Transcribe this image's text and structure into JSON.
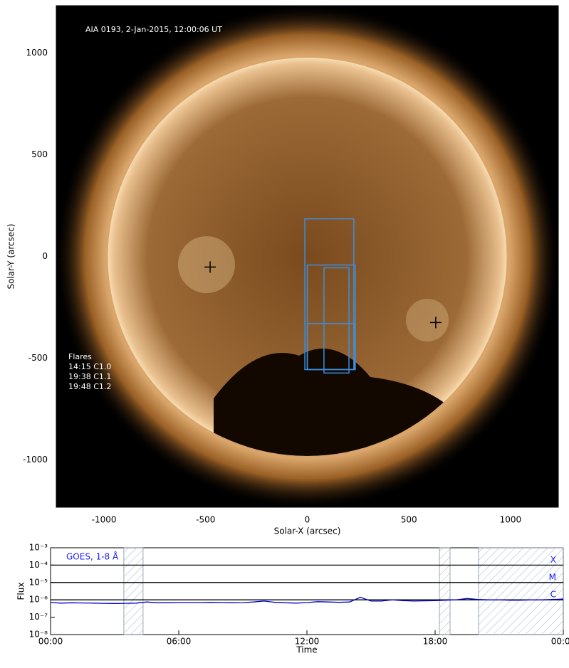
{
  "chart_data": [
    {
      "type": "image",
      "title": "AIA 0193, 2-Jan-2015, 12:00:06 UT",
      "xlabel": "Solar-X (arcsec)",
      "ylabel": "Solar-Y (arcsec)",
      "xlim": [
        -1235,
        1235
      ],
      "ylim": [
        -1233,
        1233
      ],
      "xticks": [
        -1000,
        -500,
        0,
        500,
        1000
      ],
      "yticks": [
        -1000,
        -500,
        0,
        500,
        1000
      ],
      "flares_title": "Flares",
      "flares": [
        "14:15 C1.0",
        "19:38 C1.1",
        "19:48 C1.2"
      ],
      "markers": {
        "x": [
          -478,
          632
        ],
        "y": [
          -52,
          -325
        ]
      },
      "boxes": {
        "color": "#3a8fe0",
        "x0": [
          -12,
          0,
          82,
          0
        ],
        "x1": [
          229,
          236,
          205,
          233
        ],
        "y0": [
          -556,
          -556,
          -573,
          -556
        ],
        "y1": [
          185,
          -42,
          -56,
          -330
        ]
      }
    },
    {
      "type": "line",
      "title": "GOES, 1-8 Å",
      "xlabel": "Time",
      "ylabel": "Flux",
      "log_scale": true,
      "xlim": [
        0,
        24
      ],
      "ylim": [
        1e-08,
        0.001
      ],
      "xticks": [
        {
          "value": 0,
          "label": "00:00"
        },
        {
          "value": 6,
          "label": "06:00"
        },
        {
          "value": 12,
          "label": "12:00"
        },
        {
          "value": 18,
          "label": "18:00"
        },
        {
          "value": 24,
          "label": "00:00"
        }
      ],
      "yticks": [
        {
          "value": 1e-08,
          "label": "10⁻⁸"
        },
        {
          "value": 1e-07,
          "label": "10⁻⁷"
        },
        {
          "value": 1e-06,
          "label": "10⁻⁶"
        },
        {
          "value": 1e-05,
          "label": "10⁻⁵"
        },
        {
          "value": 0.0001,
          "label": "10⁻⁴"
        },
        {
          "value": 0.001,
          "label": "10⁻³"
        }
      ],
      "levels": [
        {
          "value": 0.0001,
          "label": "X"
        },
        {
          "value": 1e-05,
          "label": "M"
        },
        {
          "value": 1e-06,
          "label": "C"
        }
      ],
      "shaded": [
        [
          3.43,
          4.33
        ],
        [
          18.2,
          18.7
        ],
        [
          20.03,
          24
        ]
      ],
      "x": [
        0,
        0.5,
        1,
        1.5,
        2,
        2.5,
        3,
        3.5,
        4,
        4.5,
        5,
        5.5,
        6,
        6.5,
        7,
        7.5,
        8,
        8.5,
        9,
        9.5,
        10,
        10.5,
        11,
        11.5,
        12,
        12.5,
        13,
        13.5,
        14,
        14.5,
        15,
        15.5,
        16,
        16.5,
        17,
        17.5,
        18,
        18.5,
        19,
        19.5,
        20,
        20.5,
        21,
        21.5,
        22,
        22.5,
        23,
        23.5,
        24
      ],
      "series": [
        {
          "color": "#0000cc",
          "values": [
            7e-07,
            6.5e-07,
            6.8e-07,
            6.6e-07,
            6.5e-07,
            6.3e-07,
            6.2e-07,
            6.3e-07,
            6.5e-07,
            7.5e-07,
            6.8e-07,
            6.8e-07,
            7e-07,
            7e-07,
            6.9e-07,
            7.1e-07,
            7e-07,
            6.8e-07,
            6.9e-07,
            7.5e-07,
            8.5e-07,
            7.2e-07,
            6.8e-07,
            6.5e-07,
            7e-07,
            7.8e-07,
            7.5e-07,
            7.2e-07,
            7.5e-07,
            1.4e-06,
            8.5e-07,
            8.5e-07,
            1e-06,
            9e-07,
            8.5e-07,
            8.8e-07,
            9e-07,
            9.5e-07,
            1e-06,
            1.2e-06,
            1.05e-06,
            1e-06,
            1e-06,
            9.5e-07,
            9.5e-07,
            1e-06,
            1e-06,
            1.05e-06,
            1.1e-06
          ]
        }
      ]
    }
  ]
}
